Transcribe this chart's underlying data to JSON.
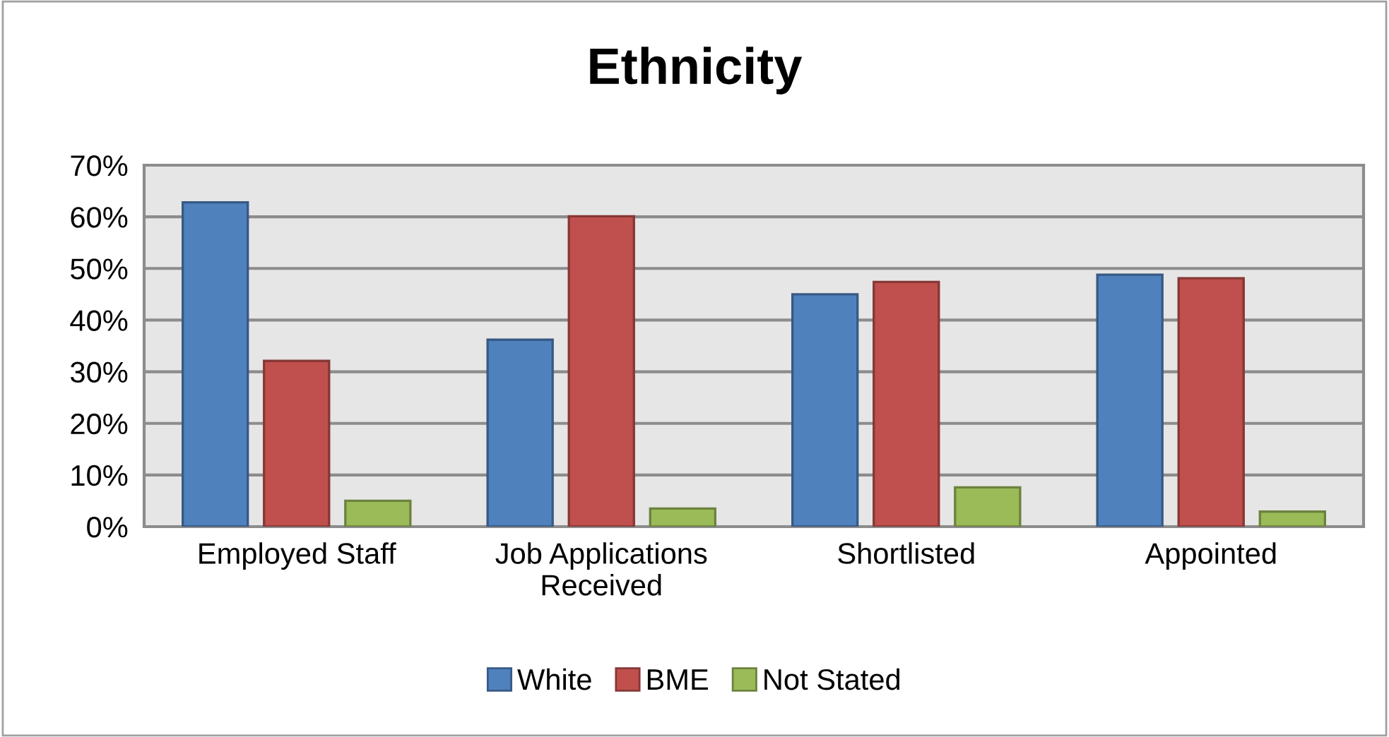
{
  "chart_data": {
    "type": "bar",
    "title": "Ethnicity",
    "categories": [
      "Employed Staff",
      "Job Applications\nReceived",
      "Shortlisted",
      "Appointed"
    ],
    "series": [
      {
        "name": "White",
        "color": "#4f81bd",
        "values": [
          62.8,
          36.2,
          45.0,
          48.8
        ]
      },
      {
        "name": "BME",
        "color": "#c0504d",
        "values": [
          32.1,
          60.1,
          47.4,
          48.1
        ]
      },
      {
        "name": "Not Stated",
        "color": "#9bbb59",
        "values": [
          5.0,
          3.5,
          7.6,
          2.9
        ]
      }
    ],
    "ylim": [
      0,
      70
    ],
    "yticks": [
      {
        "value": 0,
        "label": "0%"
      },
      {
        "value": 10,
        "label": "10%"
      },
      {
        "value": 20,
        "label": "20%"
      },
      {
        "value": 30,
        "label": "30%"
      },
      {
        "value": 40,
        "label": "40%"
      },
      {
        "value": 50,
        "label": "50%"
      },
      {
        "value": 60,
        "label": "60%"
      },
      {
        "value": 70,
        "label": "70%"
      }
    ],
    "grid": "y",
    "legend": "bottom"
  }
}
